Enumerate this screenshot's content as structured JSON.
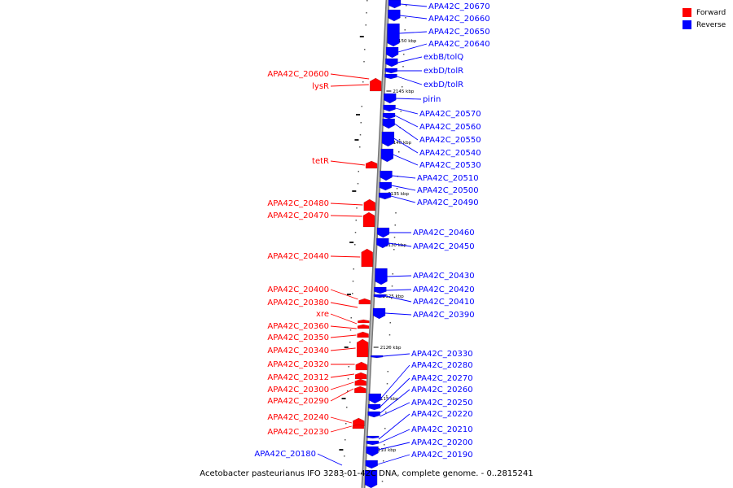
{
  "legend": {
    "forward_label": "Forward",
    "reverse_label": "Reverse",
    "forward_color": "#ff0000",
    "reverse_color": "#0000ff"
  },
  "caption": "Acetobacter pasteurianus IFO 3283-01-42C DNA, complete genome. - 0..2815241",
  "scale_labels": [
    "2150 kbp",
    "2145 kbp",
    "2140 kbp",
    "2135 kbp",
    "2130 kbp",
    "2125 kbp",
    "2120 kbp",
    "2115 kbp",
    "2110 kbp"
  ],
  "reverse_genes": [
    "APA42C_20670",
    "APA42C_20660",
    "APA42C_20650",
    "APA42C_20640",
    "exbB/tolQ",
    "exbD/tolR",
    "exbD/tolR",
    "pirin",
    "APA42C_20570",
    "APA42C_20560",
    "APA42C_20550",
    "APA42C_20540",
    "APA42C_20530",
    "APA42C_20510",
    "APA42C_20500",
    "APA42C_20490",
    "APA42C_20460",
    "APA42C_20450",
    "APA42C_20430",
    "APA42C_20420",
    "APA42C_20410",
    "APA42C_20390",
    "APA42C_20330",
    "APA42C_20280",
    "APA42C_20270",
    "APA42C_20260",
    "APA42C_20250",
    "APA42C_20220",
    "APA42C_20210",
    "APA42C_20200",
    "APA42C_20190",
    "APA42C_20180"
  ],
  "forward_genes": [
    "APA42C_20600",
    "lysR",
    "tetR",
    "APA42C_20480",
    "APA42C_20470",
    "APA42C_20440",
    "APA42C_20400",
    "APA42C_20380",
    "xre",
    "APA42C_20360",
    "APA42C_20350",
    "APA42C_20340",
    "APA42C_20320",
    "APA42C_20312",
    "APA42C_20300",
    "APA42C_20290",
    "APA42C_20240",
    "APA42C_20230"
  ]
}
